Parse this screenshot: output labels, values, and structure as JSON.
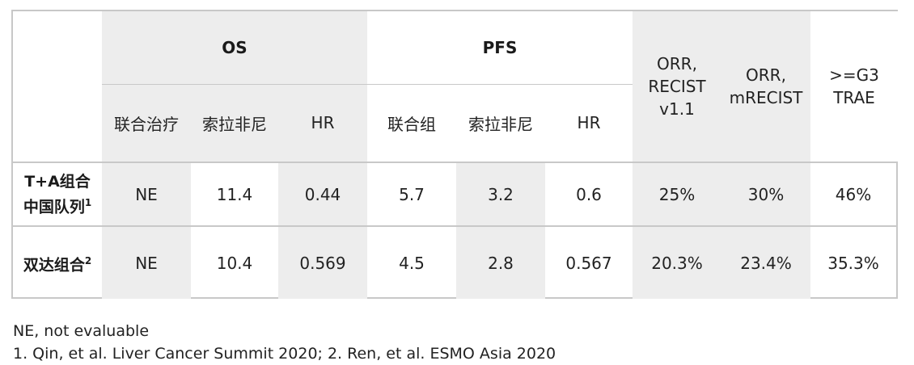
{
  "table": {
    "groups": {
      "os": "OS",
      "pfs": "PFS"
    },
    "metrics": {
      "orr_recist_l1": "ORR,",
      "orr_recist_l2": "RECIST",
      "orr_recist_l3": "v1.1",
      "orr_mrecist_l1": "ORR,",
      "orr_mrecist_l2": "mRECIST",
      "trae_l1": ">=G3",
      "trae_l2": "TRAE"
    },
    "subheaders": {
      "os_combo": "联合治疗",
      "os_sora": "索拉非尼",
      "os_hr": "HR",
      "pfs_combo": "联合组",
      "pfs_sora": "索拉非尼",
      "pfs_hr": "HR"
    },
    "rows": [
      {
        "label_l1": "T+A组合",
        "label_l2": "中国队列",
        "ref": "1",
        "os_combo": "NE",
        "os_sora": "11.4",
        "os_hr": "0.44",
        "pfs_combo": "5.7",
        "pfs_sora": "3.2",
        "pfs_hr": "0.6",
        "orr_recist": "25%",
        "orr_mrecist": "30%",
        "trae": "46%"
      },
      {
        "label_l1": "双达组合",
        "ref": "2",
        "os_combo": "NE",
        "os_sora": "10.4",
        "os_hr": "0.569",
        "pfs_combo": "4.5",
        "pfs_sora": "2.8",
        "pfs_hr": "0.567",
        "orr_recist": "20.3%",
        "orr_mrecist": "23.4%",
        "trae": "35.3%"
      }
    ]
  },
  "footnotes": {
    "line1": "NE, not evaluable",
    "line2": "1. Qin, et al. Liver Cancer Summit 2020; 2. Ren, et al. ESMO Asia 2020"
  }
}
